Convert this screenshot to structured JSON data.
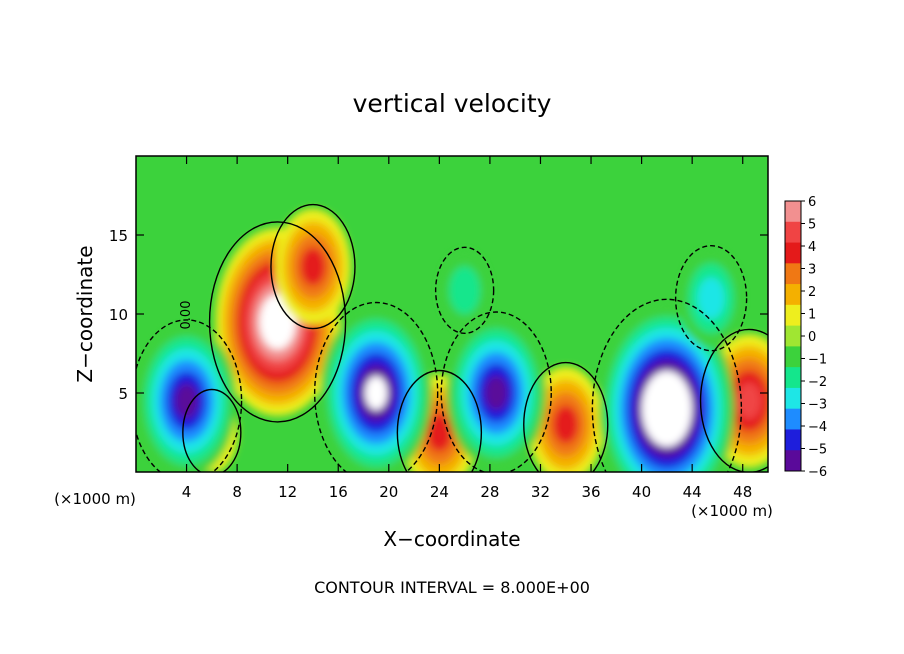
{
  "chart_data": {
    "type": "heatmap",
    "title": "vertical velocity",
    "xlabel": "X−coordinate",
    "ylabel": "Z−coordinate",
    "x_unit_left": "(×1000 m)",
    "x_unit_right": "(×1000 m)",
    "footer": "CONTOUR INTERVAL = 8.000E+00",
    "contour_label": "0.00",
    "xlim": [
      0,
      50
    ],
    "ylim": [
      0,
      20
    ],
    "x_ticks": [
      4,
      8,
      12,
      16,
      20,
      24,
      28,
      32,
      36,
      40,
      44,
      48
    ],
    "x_tick_labels": [
      "4",
      "8",
      "12",
      "16",
      "20",
      "24",
      "28",
      "32",
      "36",
      "40",
      "44",
      "48"
    ],
    "y_ticks": [
      5,
      10,
      15
    ],
    "y_tick_labels": [
      "5",
      "10",
      "15"
    ],
    "colorbar": {
      "range": [
        -6,
        6
      ],
      "labels": [
        "6",
        "5",
        "4",
        "3",
        "2",
        "1",
        "0",
        "−1",
        "−2",
        "−3",
        "−4",
        "−5",
        "−6"
      ],
      "colors": [
        "#f29090",
        "#f04444",
        "#e41a1a",
        "#f07814",
        "#f4b000",
        "#eeee1e",
        "#a0e632",
        "#3cd23c",
        "#14e68c",
        "#1ee6e6",
        "#1e8cff",
        "#1e1edc",
        "#5a0a9a"
      ]
    },
    "features": [
      {
        "kind": "updraft",
        "x": 11.2,
        "z": 9.5,
        "peak": 8
      },
      {
        "kind": "updraft",
        "x": 14.0,
        "z": 13.0,
        "peak": 4
      },
      {
        "kind": "updraft",
        "x": 6.0,
        "z": 2.5,
        "peak": 2
      },
      {
        "kind": "updraft",
        "x": 24.0,
        "z": 2.5,
        "peak": 4
      },
      {
        "kind": "updraft",
        "x": 34.0,
        "z": 3.0,
        "peak": 4
      },
      {
        "kind": "updraft",
        "x": 48.5,
        "z": 4.5,
        "peak": 5
      },
      {
        "kind": "downdraft",
        "x": 4.0,
        "z": 4.5,
        "peak": -6
      },
      {
        "kind": "downdraft",
        "x": 19.0,
        "z": 5.0,
        "peak": -7
      },
      {
        "kind": "downdraft",
        "x": 28.5,
        "z": 5.0,
        "peak": -6
      },
      {
        "kind": "downdraft",
        "x": 42.0,
        "z": 4.0,
        "peak": -9
      },
      {
        "kind": "downdraft",
        "x": 45.5,
        "z": 11.0,
        "peak": -3
      },
      {
        "kind": "downdraft",
        "x": 26.0,
        "z": 11.5,
        "peak": -2
      }
    ]
  }
}
